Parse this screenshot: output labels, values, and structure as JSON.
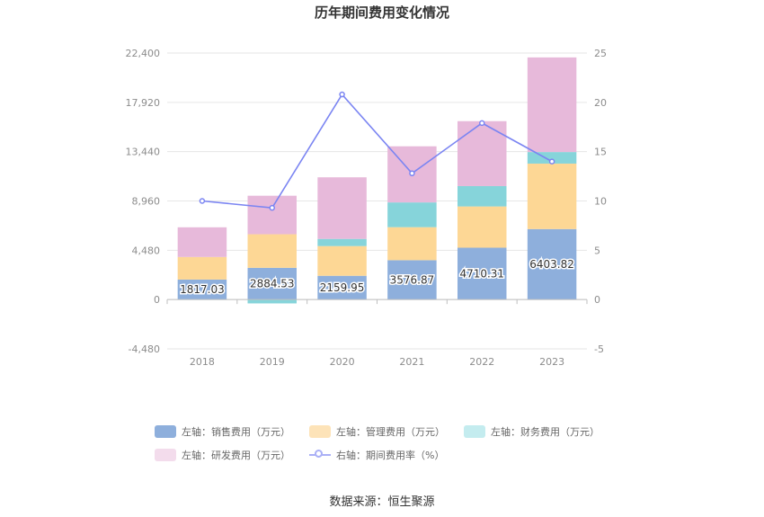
{
  "chart_data": {
    "type": "bar",
    "title": "历年期间费用变化情况",
    "categories": [
      "2018",
      "2019",
      "2020",
      "2021",
      "2022",
      "2023"
    ],
    "left_axis": {
      "min": -4480,
      "max": 22400,
      "ticks": [
        "-4,480",
        "0",
        "4,480",
        "8,960",
        "13,440",
        "17,920",
        "22,400"
      ]
    },
    "right_axis": {
      "min": -5,
      "max": 25,
      "ticks": [
        "-5",
        "0",
        "5",
        "10",
        "15",
        "20",
        "25"
      ]
    },
    "series": [
      {
        "name": "左轴：销售费用（万元）",
        "kind": "bar",
        "axis": "left",
        "color": "#8eafdc",
        "values": [
          1817.03,
          2884.53,
          2159.95,
          3576.87,
          4710.31,
          6403.82
        ]
      },
      {
        "name": "左轴：管理费用（万元）",
        "kind": "bar",
        "axis": "left",
        "color": "#fdd795",
        "values": [
          2050,
          3050,
          2700,
          3000,
          3750,
          5950
        ]
      },
      {
        "name": "左轴：财务费用（万元）",
        "kind": "bar",
        "axis": "left",
        "color": "#86d4da",
        "values": [
          -30,
          -350,
          650,
          2250,
          1850,
          1050
        ]
      },
      {
        "name": "左轴：研发费用（万元）",
        "kind": "bar",
        "axis": "left",
        "color": "#e7b9da",
        "values": [
          2700,
          3500,
          5600,
          5100,
          5900,
          8600
        ]
      },
      {
        "name": "右轴：期间费用率（%）",
        "kind": "line",
        "axis": "right",
        "color": "#7b85f2",
        "values": [
          10,
          9.3,
          20.8,
          12.8,
          17.9,
          14
        ]
      }
    ],
    "data_labels": [
      "1817.03",
      "2884.53",
      "2159.95",
      "3576.87",
      "4710.31",
      "6403.82"
    ],
    "legend_position": "bottom",
    "grid": true
  },
  "legend": {
    "items": [
      {
        "label": "左轴：销售费用（万元）",
        "color": "#8eafdc"
      },
      {
        "label": "左轴：管理费用（万元）",
        "color": "#fde3b8"
      },
      {
        "label": "左轴：财务费用（万元）",
        "color": "#c4ecef"
      },
      {
        "label": "左轴：研发费用（万元）",
        "color": "#f3dcec"
      },
      {
        "label": "右轴：期间费用率（%）",
        "color": "#aab0f6"
      }
    ]
  },
  "source": "数据来源：恒生聚源"
}
